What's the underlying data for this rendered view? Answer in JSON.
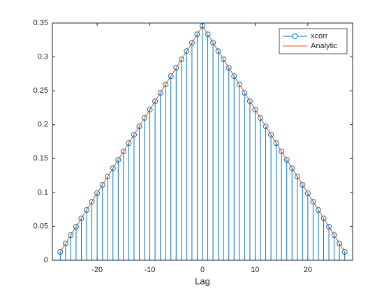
{
  "chart_data": {
    "type": "stem",
    "xlabel": "Lag",
    "x": [
      -27,
      -26,
      -25,
      -24,
      -23,
      -22,
      -21,
      -20,
      -19,
      -18,
      -17,
      -16,
      -15,
      -14,
      -13,
      -12,
      -11,
      -10,
      -9,
      -8,
      -7,
      -6,
      -5,
      -4,
      -3,
      -2,
      -1,
      0,
      1,
      2,
      3,
      4,
      5,
      6,
      7,
      8,
      9,
      10,
      11,
      12,
      13,
      14,
      15,
      16,
      17,
      18,
      19,
      20,
      21,
      22,
      23,
      24,
      25,
      26,
      27
    ],
    "series": [
      {
        "name": "xcorr",
        "style": "stem",
        "color": "#0072BD",
        "values": [
          0.0123,
          0.0247,
          0.037,
          0.0494,
          0.0617,
          0.0741,
          0.0864,
          0.0988,
          0.1111,
          0.1235,
          0.1358,
          0.1481,
          0.1605,
          0.1728,
          0.1852,
          0.1975,
          0.2099,
          0.2222,
          0.2346,
          0.2469,
          0.2593,
          0.2716,
          0.284,
          0.2963,
          0.3086,
          0.321,
          0.3333,
          0.3457,
          0.3333,
          0.321,
          0.3086,
          0.2963,
          0.284,
          0.2716,
          0.2593,
          0.2469,
          0.2346,
          0.2222,
          0.2099,
          0.1975,
          0.1852,
          0.1728,
          0.1605,
          0.1481,
          0.1358,
          0.1235,
          0.1111,
          0.0988,
          0.0864,
          0.0741,
          0.0617,
          0.0494,
          0.037,
          0.0247,
          0.0123
        ]
      },
      {
        "name": "Analytic",
        "style": "line",
        "color": "#D95319",
        "values": [
          0.0123,
          0.0247,
          0.037,
          0.0494,
          0.0617,
          0.0741,
          0.0864,
          0.0988,
          0.1111,
          0.1235,
          0.1358,
          0.1481,
          0.1605,
          0.1728,
          0.1852,
          0.1975,
          0.2099,
          0.2222,
          0.2346,
          0.2469,
          0.2593,
          0.2716,
          0.284,
          0.2963,
          0.3086,
          0.321,
          0.3333,
          0.3457,
          0.3333,
          0.321,
          0.3086,
          0.2963,
          0.284,
          0.2716,
          0.2593,
          0.2469,
          0.2346,
          0.2222,
          0.2099,
          0.1975,
          0.1852,
          0.1728,
          0.1605,
          0.1481,
          0.1358,
          0.1235,
          0.1111,
          0.0988,
          0.0864,
          0.0741,
          0.0617,
          0.0494,
          0.037,
          0.0247,
          0.0123
        ]
      }
    ],
    "xlim": [
      -28.5,
      28.5
    ],
    "xticks": [
      -20,
      -10,
      0,
      10,
      20
    ],
    "ylim": [
      0,
      0.35
    ],
    "yticks": [
      0,
      0.05,
      0.1,
      0.15,
      0.2,
      0.25,
      0.3,
      0.35
    ],
    "legend": "upper-right"
  }
}
